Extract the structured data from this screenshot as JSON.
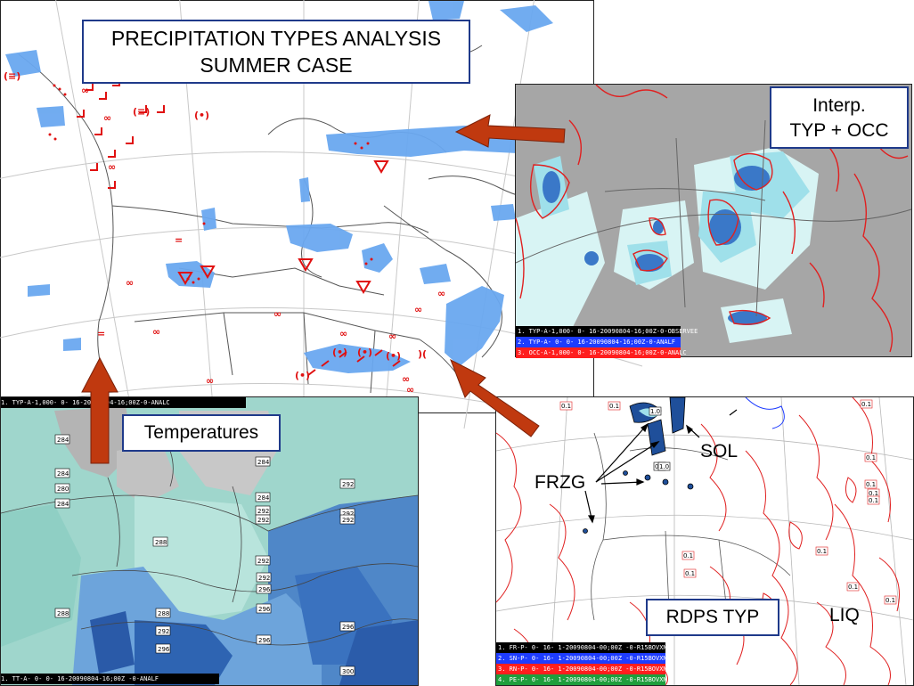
{
  "title": {
    "line1": "PRECIPITATION TYPES ANALYSIS",
    "line2": "SUMMER CASE"
  },
  "callouts": {
    "interp_line1": "Interp.",
    "interp_line2": "TYP + OCC",
    "temperatures": "Temperatures",
    "rdps": "RDPS TYP",
    "sol": "SOL",
    "frzg": "FRZG",
    "liq": "LIQ"
  },
  "interp_panel": {
    "legend": [
      {
        "text": "1. TYP-A-1,000-  0- 16-20090804-16;00Z-0-OBSERVEE",
        "color": "#000000"
      },
      {
        "text": "2. TYP-A-   0-  0- 16-20090804-16;00Z-0-ANALF",
        "color": "#1e3cff"
      },
      {
        "text": "3. OCC-A-1,000-  0- 16-20090804-16;00Z-0-ANALC",
        "color": "#ff1e1e"
      }
    ]
  },
  "temperature_panel": {
    "header": "1. TYP-A-1,000-  0- 16-20090804-16;00Z-0-ANALC",
    "footer": "1. TT-A-   0-  0- 16-20090804-16;00Z -0-ANALF",
    "isotherm_labels": [
      "284",
      "284",
      "280",
      "284",
      "284",
      "284",
      "284",
      "288",
      "292",
      "292",
      "292",
      "292",
      "292",
      "292",
      "288",
      "288",
      "292",
      "296",
      "296",
      "296",
      "296",
      "300",
      "296",
      "292"
    ]
  },
  "rdps_panel": {
    "contour_labels": [
      "1.0",
      "0.1",
      "0.1",
      "0.1",
      "0.1",
      "0.1",
      "0.1",
      "0.1",
      "0.1",
      "0.1",
      "0.1",
      "0.1",
      "1.0",
      "0.1",
      "0.1",
      "0.1"
    ],
    "legend": [
      {
        "text": "1. FR-P-   0- 16-  1-20090804-00;00Z -0-R15BOVXN",
        "color": "#000000"
      },
      {
        "text": "2. SN-P-   0- 16-  1-20090804-00;00Z -0-R15BOVXN",
        "color": "#1e3cff"
      },
      {
        "text": "3. RN-P-   0- 16-  1-20090804-00;00Z -0-R15BOVXN",
        "color": "#ff1e1e"
      },
      {
        "text": "4. PE-P-   0- 16-  1-20090804-00;00Z -0-R15BOVXN",
        "color": "#1e9e3c"
      }
    ]
  },
  "colors": {
    "arrow": "#c0390f",
    "box_border": "#1f3a8a",
    "precip_blue": "#6aa8f0",
    "symbol_red": "#e01010",
    "contour_red": "#e02020"
  }
}
